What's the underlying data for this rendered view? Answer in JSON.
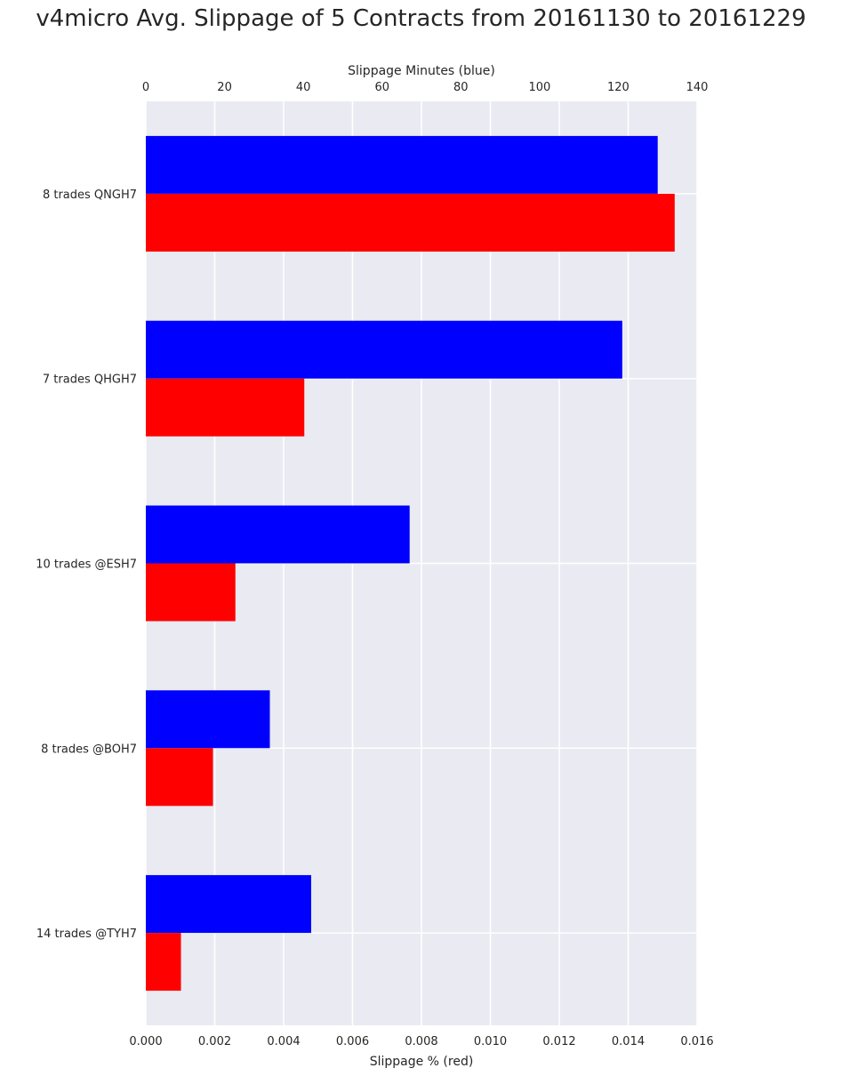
{
  "chart_data": {
    "type": "bar",
    "orientation": "horizontal",
    "title": "v4micro Avg. Slippage of 5 Contracts from 20161130 to 20161229",
    "categories": [
      "8 trades QNGH7",
      "7 trades QHGH7",
      "10 trades @ESH7",
      "8 trades @BOH7",
      "14 trades @TYH7"
    ],
    "series": [
      {
        "axis": "top",
        "color": "#0000ff",
        "values": [
          130.0,
          121.0,
          67.0,
          31.5,
          42.0
        ]
      },
      {
        "axis": "bottom",
        "color": "#ff0000",
        "values": [
          0.01535,
          0.0046,
          0.0026,
          0.00195,
          0.00102
        ]
      }
    ],
    "top_axis": {
      "label": "Slippage Minutes (blue)",
      "range": [
        0,
        140
      ],
      "ticks": [
        0,
        20,
        40,
        60,
        80,
        100,
        120,
        140
      ],
      "tick_labels": [
        "0",
        "20",
        "40",
        "60",
        "80",
        "100",
        "120",
        "140"
      ]
    },
    "bottom_axis": {
      "label": "Slippage % (red)",
      "range": [
        0,
        0.016
      ],
      "ticks": [
        0,
        0.002,
        0.004,
        0.006,
        0.008,
        0.01,
        0.012,
        0.014,
        0.016
      ],
      "tick_labels": [
        "0.000",
        "0.002",
        "0.004",
        "0.006",
        "0.008",
        "0.010",
        "0.012",
        "0.014",
        "0.016"
      ]
    },
    "grid": true,
    "background_color": "#eaeaf2",
    "grid_color": "#ffffff",
    "legend": "none"
  }
}
